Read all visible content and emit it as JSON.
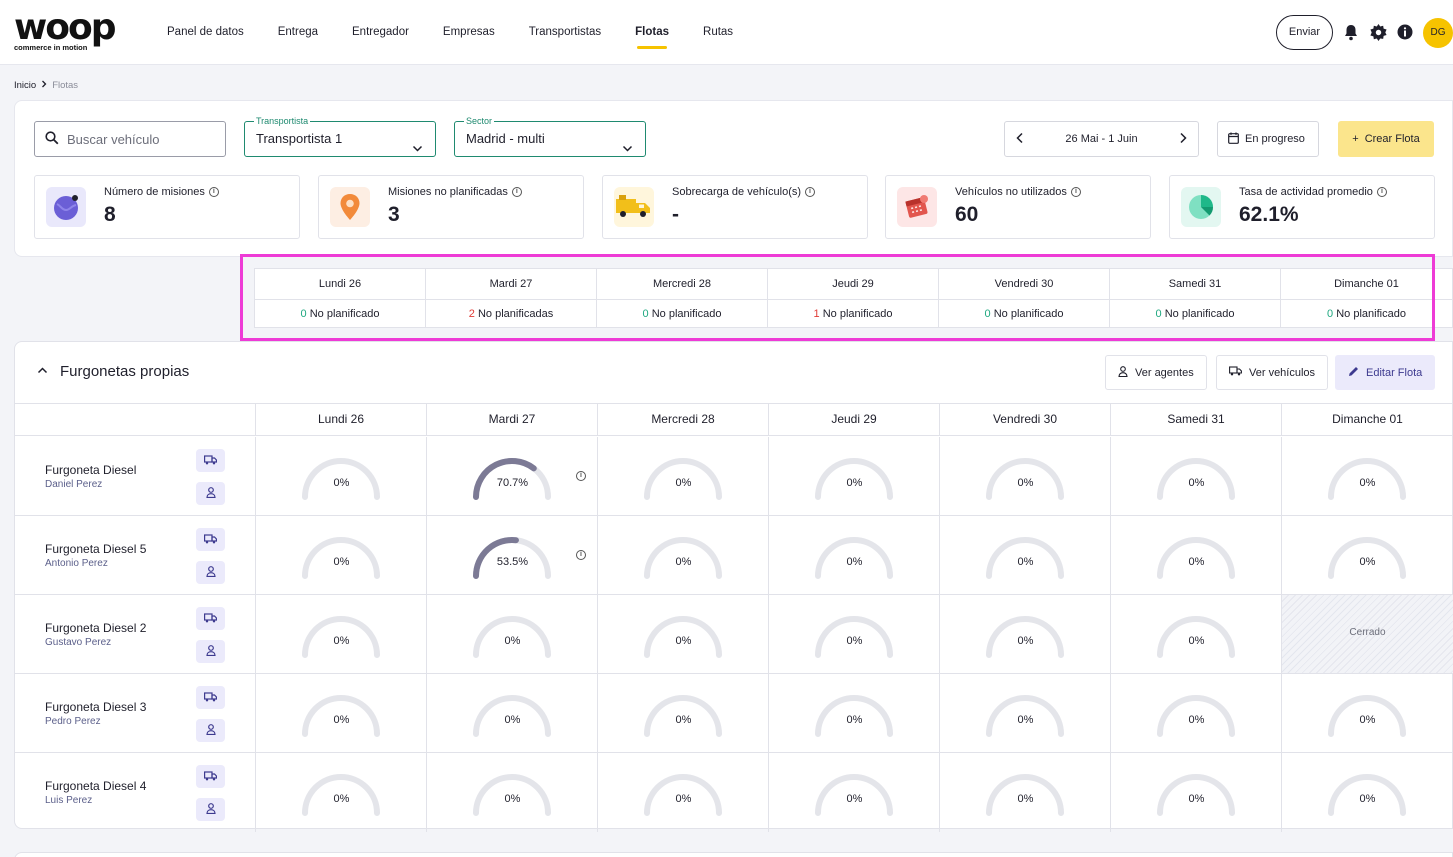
{
  "brand": {
    "logo_text": "woop",
    "tagline": "commerce in motion",
    "accent": "#f6c300"
  },
  "nav": {
    "items": [
      {
        "label": "Panel de datos",
        "active": false
      },
      {
        "label": "Entrega",
        "active": false
      },
      {
        "label": "Entregador",
        "active": false
      },
      {
        "label": "Empresas",
        "active": false
      },
      {
        "label": "Transportistas",
        "active": false
      },
      {
        "label": "Flotas",
        "active": true
      },
      {
        "label": "Rutas",
        "active": false
      }
    ],
    "send_label": "Enviar",
    "avatar_initials": "DG",
    "icons": [
      "bell-icon",
      "gear-icon",
      "info-icon"
    ]
  },
  "breadcrumb": {
    "home": "Inicio",
    "current": "Flotas"
  },
  "filters": {
    "search_placeholder": "Buscar vehículo",
    "carrier_label": "Transportista",
    "carrier_value": "Transportista 1",
    "sector_label": "Sector",
    "sector_value": "Madrid - multi",
    "date_range": "26 Mai - 1 Juin",
    "status_button": "En progreso",
    "create_button": "Crear Flota"
  },
  "kpis": [
    {
      "label": "Número de misiones",
      "value": "8",
      "icon": "globe-icon",
      "bg": "#e9e8fb"
    },
    {
      "label": "Misiones no planificadas",
      "value": "3",
      "icon": "map-pin-icon",
      "bg": "#fdeee3"
    },
    {
      "label": "Sobrecarga de vehículo(s)",
      "value": "-",
      "icon": "truck-icon",
      "bg": "#fff6dc"
    },
    {
      "label": "Vehículos no utilizados",
      "value": "60",
      "icon": "calendar-icon",
      "bg": "#fde6e6"
    },
    {
      "label": "Tasa de actividad promedio",
      "value": "62.1%",
      "icon": "pie-chart-icon",
      "bg": "#e3f7f1"
    }
  ],
  "summary": [
    {
      "day": "Lundi 26",
      "count": "0",
      "label": "No planificado",
      "status": "ok"
    },
    {
      "day": "Mardi 27",
      "count": "2",
      "label": "No planificadas",
      "status": "warn"
    },
    {
      "day": "Mercredi 28",
      "count": "0",
      "label": "No planificado",
      "status": "ok"
    },
    {
      "day": "Jeudi 29",
      "count": "1",
      "label": "No planificado",
      "status": "warn"
    },
    {
      "day": "Vendredi 30",
      "count": "0",
      "label": "No planificado",
      "status": "ok"
    },
    {
      "day": "Samedi 31",
      "count": "0",
      "label": "No planificado",
      "status": "ok"
    },
    {
      "day": "Dimanche 01",
      "count": "0",
      "label": "No planificado",
      "status": "ok"
    }
  ],
  "fleet": {
    "title": "Furgonetas propias",
    "buttons": {
      "agents": "Ver agentes",
      "vehicles": "Ver vehículos",
      "edit": "Editar Flota"
    },
    "days": [
      "Lundi 26",
      "Mardi 27",
      "Mercredi 28",
      "Jeudi 29",
      "Vendredi 30",
      "Samedi 31",
      "Dimanche 01"
    ],
    "closed_label": "Cerrado",
    "rows": [
      {
        "name": "Furgoneta Diesel",
        "driver": "Daniel Perez",
        "cells": [
          {
            "pct": 0,
            "text": "0%"
          },
          {
            "pct": 70.7,
            "text": "70.7%",
            "info": true
          },
          {
            "pct": 0,
            "text": "0%"
          },
          {
            "pct": 0,
            "text": "0%"
          },
          {
            "pct": 0,
            "text": "0%"
          },
          {
            "pct": 0,
            "text": "0%"
          },
          {
            "pct": 0,
            "text": "0%"
          }
        ]
      },
      {
        "name": "Furgoneta Diesel 5",
        "driver": "Antonio Perez",
        "cells": [
          {
            "pct": 0,
            "text": "0%"
          },
          {
            "pct": 53.5,
            "text": "53.5%",
            "info": true
          },
          {
            "pct": 0,
            "text": "0%"
          },
          {
            "pct": 0,
            "text": "0%"
          },
          {
            "pct": 0,
            "text": "0%"
          },
          {
            "pct": 0,
            "text": "0%"
          },
          {
            "pct": 0,
            "text": "0%"
          }
        ]
      },
      {
        "name": "Furgoneta Diesel 2",
        "driver": "Gustavo Perez",
        "cells": [
          {
            "pct": 0,
            "text": "0%"
          },
          {
            "pct": 0,
            "text": "0%"
          },
          {
            "pct": 0,
            "text": "0%"
          },
          {
            "pct": 0,
            "text": "0%"
          },
          {
            "pct": 0,
            "text": "0%"
          },
          {
            "pct": 0,
            "text": "0%"
          },
          {
            "closed": true
          }
        ]
      },
      {
        "name": "Furgoneta Diesel 3",
        "driver": "Pedro Perez",
        "cells": [
          {
            "pct": 0,
            "text": "0%"
          },
          {
            "pct": 0,
            "text": "0%"
          },
          {
            "pct": 0,
            "text": "0%"
          },
          {
            "pct": 0,
            "text": "0%"
          },
          {
            "pct": 0,
            "text": "0%"
          },
          {
            "pct": 0,
            "text": "0%"
          },
          {
            "pct": 0,
            "text": "0%"
          }
        ]
      },
      {
        "name": "Furgoneta Diesel 4",
        "driver": "Luis Perez",
        "cells": [
          {
            "pct": 0,
            "text": "0%"
          },
          {
            "pct": 0,
            "text": "0%"
          },
          {
            "pct": 0,
            "text": "0%"
          },
          {
            "pct": 0,
            "text": "0%"
          },
          {
            "pct": 0,
            "text": "0%"
          },
          {
            "pct": 0,
            "text": "0%"
          },
          {
            "pct": 0,
            "text": "0%"
          }
        ]
      }
    ]
  },
  "colors": {
    "gauge_track": "#e4e5ea",
    "gauge_fill": "#7c7a95",
    "ok": "#1fa880",
    "warn": "#e03b36",
    "highlight": "#ee3bd6"
  }
}
